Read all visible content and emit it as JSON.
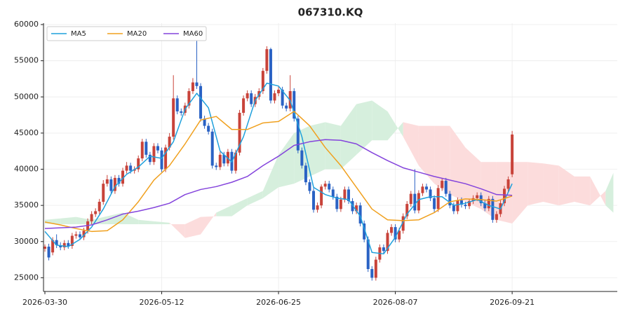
{
  "chart_data": {
    "type": "candlestick",
    "title": "067310.KQ",
    "x": [
      0,
      1,
      2,
      3,
      4,
      5,
      6,
      7,
      8,
      9,
      10,
      11,
      12,
      13,
      14,
      15,
      16,
      17,
      18,
      19,
      20,
      21,
      22,
      23,
      24,
      25,
      26,
      27,
      28,
      29,
      30,
      31,
      32,
      33,
      34,
      35,
      36,
      37,
      38,
      39,
      40,
      41,
      42,
      43,
      44,
      45,
      46,
      47,
      48,
      49,
      50,
      51,
      52,
      53,
      54,
      55,
      56,
      57,
      58,
      59,
      60,
      61,
      62,
      63,
      64,
      65,
      66,
      67,
      68,
      69,
      70,
      71,
      72,
      73,
      74,
      75,
      76,
      77,
      78,
      79,
      80,
      81,
      82,
      83,
      84,
      85,
      86,
      87,
      88,
      89,
      90,
      91,
      92,
      93,
      94,
      95,
      96,
      97,
      98,
      99,
      100,
      101,
      102,
      103,
      104,
      105,
      106,
      107,
      108,
      109,
      110,
      111,
      112,
      113,
      114,
      115,
      116,
      117,
      118,
      119,
      120
    ],
    "open": [
      29000,
      29300,
      28500,
      30200,
      29500,
      29200,
      29800,
      29400,
      30800,
      31000,
      30600,
      31500,
      32800,
      33800,
      34200,
      35500,
      38000,
      38600,
      37000,
      38800,
      38000,
      39800,
      40500,
      39800,
      40000,
      41500,
      43800,
      42000,
      41000,
      43200,
      42600,
      40000,
      43000,
      44500,
      49800,
      48000,
      47800,
      48800,
      50800,
      52000,
      51500,
      47000,
      46000,
      45200,
      40500,
      40300,
      42000,
      40800,
      42400,
      39800,
      42300,
      47800,
      49800,
      50500,
      49000,
      50000,
      50800,
      53600,
      56600,
      49500,
      50500,
      51000,
      48800,
      48400,
      50800,
      47000,
      42600,
      40500,
      38200,
      37000,
      34400,
      35000,
      37600,
      38000,
      37200,
      36200,
      34500,
      35800,
      37200,
      35600,
      34200,
      35000,
      32500,
      30300,
      26200,
      25000,
      27500,
      29200,
      28700,
      31200,
      32000,
      30300,
      31500,
      33500,
      35200,
      36600,
      34300,
      36700,
      37600,
      37200,
      36000,
      34500,
      37400,
      38400,
      36600,
      35000,
      34200,
      35700,
      35100,
      34900,
      35600,
      36000,
      36400,
      35300,
      34600,
      35900,
      33000,
      33800,
      35300,
      37300,
      39300
    ],
    "high": [
      29600,
      29700,
      30600,
      31000,
      29900,
      30200,
      30200,
      31200,
      31400,
      31400,
      31900,
      33200,
      34200,
      34600,
      35900,
      38500,
      39200,
      39000,
      39200,
      39200,
      40200,
      41000,
      40900,
      40400,
      41900,
      44200,
      44200,
      42400,
      43600,
      43600,
      43000,
      43400,
      45000,
      53000,
      50200,
      48400,
      49200,
      51200,
      52600,
      57800,
      51900,
      47400,
      46400,
      45600,
      40900,
      42400,
      42400,
      42800,
      42800,
      42700,
      48200,
      50200,
      50900,
      50900,
      50400,
      51200,
      54000,
      57000,
      56800,
      50900,
      51400,
      51400,
      49200,
      53000,
      51200,
      47400,
      43000,
      40900,
      38600,
      37400,
      35400,
      37900,
      38400,
      38400,
      37600,
      36600,
      36200,
      37600,
      37600,
      36000,
      35400,
      35400,
      32900,
      30700,
      26600,
      27900,
      29600,
      29600,
      31600,
      32400,
      32400,
      31900,
      33900,
      35600,
      37000,
      40000,
      37100,
      38000,
      38000,
      37600,
      36400,
      37800,
      38800,
      38800,
      37000,
      35400,
      36100,
      36100,
      35500,
      35900,
      36400,
      36800,
      36800,
      35700,
      36300,
      36300,
      34200,
      35700,
      37700,
      39000,
      45300
    ],
    "low": [
      28600,
      27400,
      28100,
      29100,
      28800,
      28800,
      29000,
      29000,
      30400,
      30200,
      30200,
      31100,
      32400,
      33400,
      33800,
      35100,
      37600,
      36600,
      36600,
      37600,
      37600,
      39400,
      39400,
      39400,
      39600,
      41100,
      41600,
      40600,
      40600,
      42200,
      39600,
      39600,
      42600,
      44100,
      47600,
      47400,
      47400,
      48400,
      50400,
      51100,
      46600,
      45600,
      44800,
      40100,
      39900,
      39900,
      40400,
      40400,
      39400,
      39400,
      41900,
      47400,
      49400,
      48600,
      48600,
      49600,
      50400,
      53200,
      49100,
      49100,
      50100,
      48400,
      48000,
      48000,
      46600,
      42200,
      40100,
      37800,
      36600,
      34000,
      34000,
      34600,
      37200,
      36800,
      35800,
      34100,
      34100,
      35400,
      35200,
      33800,
      33800,
      32100,
      29900,
      25800,
      24600,
      24600,
      27100,
      28300,
      28300,
      30800,
      29900,
      29900,
      31100,
      33100,
      34800,
      33900,
      33900,
      36300,
      36800,
      35600,
      34100,
      34100,
      37000,
      36200,
      34600,
      33800,
      33800,
      34700,
      34500,
      34500,
      35200,
      35600,
      34900,
      34200,
      34200,
      32600,
      32600,
      33400,
      34900,
      36900,
      38900
    ],
    "close": [
      29300,
      27800,
      30200,
      29500,
      29200,
      29800,
      29400,
      30800,
      31000,
      30600,
      31500,
      32800,
      33800,
      34200,
      35500,
      38000,
      38600,
      37000,
      38800,
      38000,
      39800,
      40500,
      39800,
      40000,
      41500,
      43800,
      42000,
      41000,
      43200,
      42600,
      40000,
      43000,
      44500,
      49800,
      48000,
      47800,
      48800,
      50800,
      52000,
      51500,
      47000,
      46000,
      45200,
      40500,
      40300,
      42000,
      40800,
      42400,
      39800,
      42300,
      47800,
      49800,
      50500,
      49000,
      50000,
      50800,
      53600,
      56600,
      49500,
      50500,
      51000,
      48800,
      48400,
      50800,
      47000,
      42600,
      40500,
      38200,
      37000,
      34400,
      35000,
      37600,
      38000,
      37200,
      36200,
      34500,
      35800,
      37200,
      35600,
      34200,
      35000,
      32500,
      30300,
      26200,
      25000,
      27500,
      29200,
      28700,
      31200,
      32000,
      30300,
      31500,
      33500,
      35200,
      36600,
      34300,
      36700,
      37600,
      37200,
      36000,
      34500,
      37400,
      38400,
      36600,
      35000,
      34200,
      35700,
      35100,
      34900,
      35600,
      36000,
      36400,
      35300,
      34600,
      35900,
      33000,
      33800,
      35300,
      37300,
      38600,
      44800
    ],
    "up_color": "#c8433a",
    "down_color": "#2a62c4",
    "series": [
      {
        "name": "MA5",
        "color": "#1fa0dc",
        "x": [
          0,
          3,
          6,
          9,
          12,
          15,
          18,
          21,
          24,
          27,
          30,
          33,
          36,
          39,
          42,
          45,
          48,
          51,
          54,
          57,
          60,
          63,
          66,
          69,
          72,
          75,
          78,
          81,
          84,
          87,
          90,
          93,
          96,
          99,
          102,
          105,
          108,
          111,
          114,
          117,
          120
        ],
        "values": [
          31400,
          29500,
          29300,
          30300,
          32000,
          34500,
          37600,
          39300,
          40300,
          41800,
          41500,
          43800,
          48300,
          50500,
          48500,
          42500,
          41000,
          44500,
          49500,
          51900,
          51500,
          49500,
          44500,
          37500,
          36500,
          36000,
          35800,
          33500,
          28500,
          28300,
          30600,
          33800,
          35800,
          36200,
          36200,
          35000,
          35300,
          35800,
          35000,
          34500,
          38000
        ]
      },
      {
        "name": "MA20",
        "color": "#f0a01e",
        "x": [
          0,
          4,
          8,
          12,
          16,
          20,
          24,
          28,
          32,
          36,
          40,
          44,
          48,
          52,
          56,
          60,
          64,
          68,
          72,
          76,
          80,
          84,
          88,
          92,
          96,
          100,
          104,
          108,
          112,
          116,
          120
        ],
        "values": [
          32700,
          32300,
          31800,
          31400,
          31500,
          33000,
          35500,
          38500,
          40500,
          43500,
          46800,
          47300,
          45500,
          45500,
          46400,
          46600,
          48000,
          46000,
          43000,
          40500,
          37500,
          34500,
          33000,
          32900,
          33000,
          34000,
          35500,
          35900,
          35800,
          35600,
          36300
        ]
      },
      {
        "name": "MA60",
        "color": "#8444dc",
        "x": [
          0,
          4,
          8,
          12,
          16,
          20,
          24,
          28,
          32,
          36,
          40,
          44,
          48,
          52,
          56,
          60,
          64,
          68,
          72,
          76,
          80,
          84,
          88,
          92,
          96,
          100,
          104,
          108,
          112,
          116,
          120
        ],
        "values": [
          31800,
          31900,
          32000,
          32300,
          33000,
          33800,
          34200,
          34700,
          35300,
          36500,
          37200,
          37600,
          38200,
          39000,
          40500,
          41800,
          43300,
          43800,
          44100,
          44000,
          43500,
          42300,
          41200,
          40200,
          39600,
          39000,
          38500,
          38000,
          37300,
          36500,
          36400
        ]
      }
    ],
    "cloud": {
      "x": [
        0,
        4,
        8,
        12,
        16,
        20,
        24,
        28,
        32,
        36,
        40,
        44,
        48,
        52,
        56,
        60,
        64,
        68,
        72,
        76,
        80,
        84,
        88,
        92,
        96,
        100,
        104,
        108,
        112,
        116,
        120,
        124,
        128,
        132,
        136,
        140,
        144,
        146
      ],
      "span_a": [
        33000,
        33200,
        33400,
        33000,
        33500,
        34000,
        33000,
        32800,
        32600,
        30500,
        31000,
        34000,
        35000,
        36000,
        37000,
        42000,
        45000,
        46000,
        46500,
        46000,
        49000,
        49500,
        48000,
        44500,
        40500,
        38000,
        36500,
        35500,
        34500,
        33000,
        32500,
        35000,
        35500,
        35000,
        35500,
        35000,
        37000,
        39500
      ],
      "span_b": [
        32500,
        32400,
        32400,
        32400,
        32400,
        32400,
        32400,
        32400,
        32400,
        32400,
        33400,
        33500,
        33500,
        35000,
        36000,
        37500,
        38000,
        39000,
        40000,
        40000,
        42000,
        44000,
        44000,
        46500,
        46000,
        46000,
        46000,
        43000,
        41000,
        41000,
        41000,
        41000,
        40800,
        40500,
        39000,
        39000,
        35000,
        34000
      ],
      "up_color": "#d6efdd",
      "down_color": "#fcdcdc"
    },
    "xlim": [
      -0.36,
      147
    ],
    "ylim": [
      23100,
      60200
    ],
    "xticks": [
      {
        "value": 0,
        "label": "2026-03-30"
      },
      {
        "value": 30,
        "label": "2026-05-12"
      },
      {
        "value": 60,
        "label": "2026-06-25"
      },
      {
        "value": 90,
        "label": "2026-08-07"
      },
      {
        "value": 120,
        "label": "2026-09-21"
      }
    ],
    "yticks": [
      25000,
      30000,
      35000,
      40000,
      45000,
      50000,
      55000,
      60000
    ],
    "grid": true,
    "legend": "upper left"
  }
}
